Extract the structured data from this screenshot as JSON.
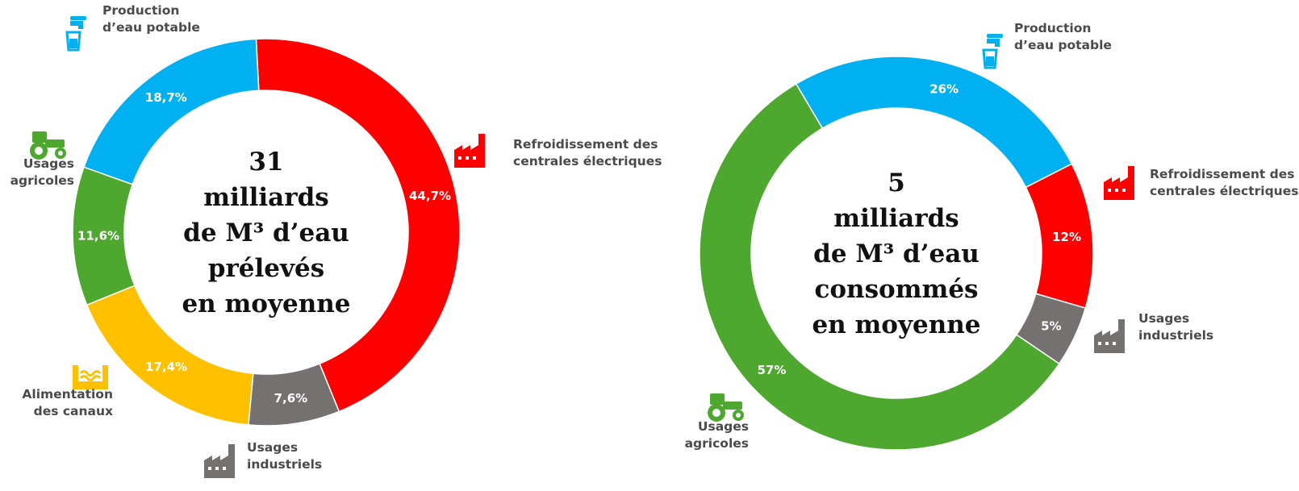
{
  "chart_data": [
    {
      "type": "pie",
      "donut": true,
      "center_lines": [
        "31",
        "milliards",
        "de M³ d’eau",
        "prélevés",
        "en moyenne"
      ],
      "start_angle_deg": -3,
      "slices": [
        {
          "key": "refroidissement",
          "value": 44.7,
          "label": "44,7%",
          "color": "#ff0000",
          "category_lines": [
            "Refroidissement des",
            "centrales électriques"
          ],
          "icon": "factory-icon"
        },
        {
          "key": "industriels",
          "value": 7.6,
          "label": "7,6%",
          "color": "#767171",
          "category_lines": [
            "Usages",
            "industriels"
          ],
          "icon": "factory-icon"
        },
        {
          "key": "canaux",
          "value": 17.4,
          "label": "17,4%",
          "color": "#ffc000",
          "category_lines": [
            "Alimentation",
            "des canaux"
          ],
          "icon": "canal-icon"
        },
        {
          "key": "agricoles",
          "value": 11.6,
          "label": "11,6%",
          "color": "#4ea72e",
          "category_lines": [
            "Usages",
            "agricoles"
          ],
          "icon": "tractor-icon"
        },
        {
          "key": "eau_potable",
          "value": 18.7,
          "label": "18,7%",
          "color": "#00b0f0",
          "category_lines": [
            "Production",
            "d’eau potable"
          ],
          "icon": "water-tap-icon"
        }
      ]
    },
    {
      "type": "pie",
      "donut": true,
      "center_lines": [
        "5",
        "milliards",
        "de M³ d’eau",
        "consommés",
        "en moyenne"
      ],
      "start_angle_deg": 63,
      "slices": [
        {
          "key": "refroidissement",
          "value": 12,
          "label": "12%",
          "color": "#ff0000",
          "category_lines": [
            "Refroidissement des",
            "centrales électriques"
          ],
          "icon": "factory-icon"
        },
        {
          "key": "industriels",
          "value": 5,
          "label": "5%",
          "color": "#767171",
          "category_lines": [
            "Usages",
            "industriels"
          ],
          "icon": "factory-icon"
        },
        {
          "key": "agricoles",
          "value": 57,
          "label": "57%",
          "color": "#4ea72e",
          "category_lines": [
            "Usages",
            "agricoles"
          ],
          "icon": "tractor-icon"
        },
        {
          "key": "eau_potable",
          "value": 26,
          "label": "26%",
          "color": "#00b0f0",
          "category_lines": [
            "Production",
            "d’eau potable"
          ],
          "icon": "water-tap-icon"
        }
      ]
    }
  ]
}
